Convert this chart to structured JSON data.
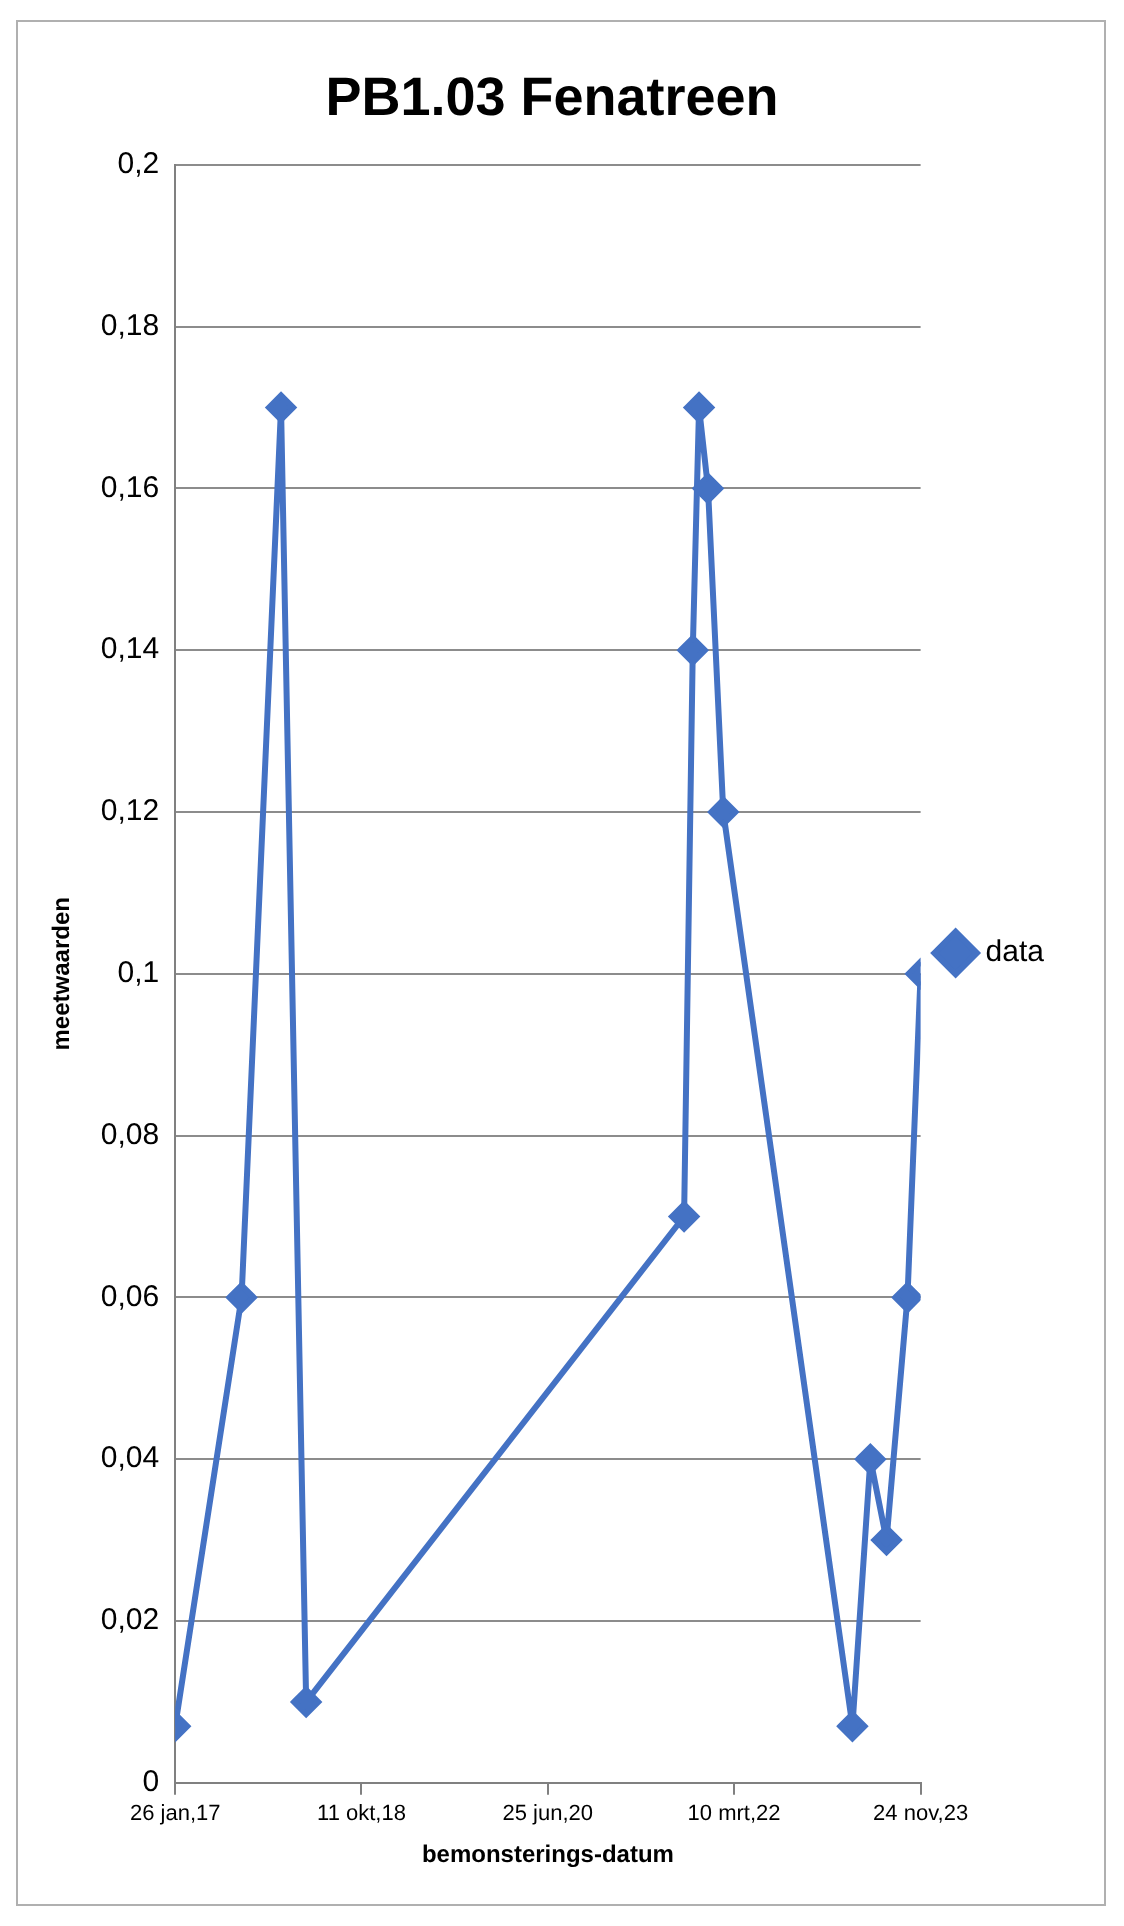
{
  "chart_data": {
    "type": "line",
    "title": "PB1.03 Fenatreen",
    "xlabel": "bemonsterings-datum",
    "ylabel": "meetwaarden",
    "x": [
      "2017-01-26",
      "2017-09-05",
      "2018-01-15",
      "2018-04-09",
      "2021-09-24",
      "2021-10-23",
      "2021-11-13",
      "2021-12-13",
      "2022-02-02",
      "2023-04-10",
      "2023-06-09",
      "2023-08-02",
      "2023-10-11",
      "2023-11-24"
    ],
    "series": [
      {
        "name": "data",
        "color": "#4472c4",
        "values": [
          0.007,
          0.06,
          0.17,
          0.01,
          0.07,
          0.14,
          0.17,
          0.16,
          0.12,
          0.007,
          0.04,
          0.03,
          0.06,
          0.1
        ]
      }
    ],
    "xlim": [
      "2017-01-26",
      "2023-11-24"
    ],
    "xticks": [
      {
        "value": "2017-01-26",
        "label": "26 jan,17"
      },
      {
        "value": "2018-10-11",
        "label": "11 okt,18"
      },
      {
        "value": "2020-06-25",
        "label": "25 jun,20"
      },
      {
        "value": "2022-03-10",
        "label": "10 mrt,22"
      },
      {
        "value": "2023-11-24",
        "label": "24 nov,23"
      }
    ],
    "ylim": [
      0,
      0.2
    ],
    "yticks": [
      {
        "value": 0,
        "label": "0"
      },
      {
        "value": 0.02,
        "label": "0,02"
      },
      {
        "value": 0.04,
        "label": "0,04"
      },
      {
        "value": 0.06,
        "label": "0,06"
      },
      {
        "value": 0.08,
        "label": "0,08"
      },
      {
        "value": 0.1,
        "label": "0,1"
      },
      {
        "value": 0.12,
        "label": "0,12"
      },
      {
        "value": 0.14,
        "label": "0,14"
      },
      {
        "value": 0.16,
        "label": "0,16"
      },
      {
        "value": 0.18,
        "label": "0,18"
      },
      {
        "value": 0.2,
        "label": "0,2"
      }
    ],
    "grid": "y",
    "legend": "right",
    "marker": "diamond",
    "line_style": "solid"
  }
}
